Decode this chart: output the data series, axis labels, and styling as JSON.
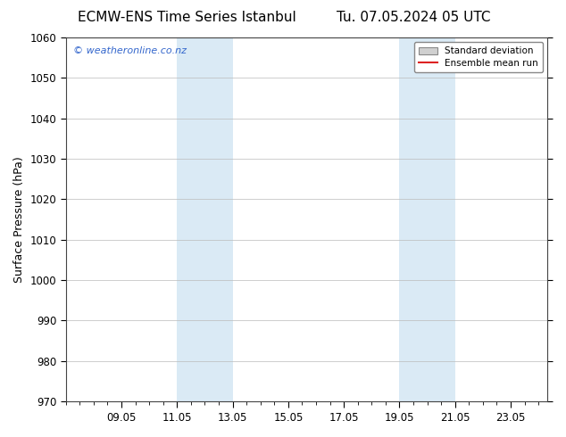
{
  "title_left": "ECMW-ENS Time Series Istanbul",
  "title_right": "Tu. 07.05.2024 05 UTC",
  "ylabel": "Surface Pressure (hPa)",
  "ylim": [
    970,
    1060
  ],
  "yticks": [
    970,
    980,
    990,
    1000,
    1010,
    1020,
    1030,
    1040,
    1050,
    1060
  ],
  "xtick_labels": [
    "09.05",
    "11.05",
    "13.05",
    "15.05",
    "17.05",
    "19.05",
    "21.05",
    "23.05"
  ],
  "xtick_positions": [
    2,
    4,
    6,
    8,
    10,
    12,
    14,
    16
  ],
  "xlim": [
    0,
    17.33
  ],
  "shade_regions": [
    {
      "x_start": 4,
      "x_end": 6
    },
    {
      "x_start": 12,
      "x_end": 14
    }
  ],
  "shade_color": "#daeaf5",
  "grid_color": "#bbbbbb",
  "watermark_text": "© weatheronline.co.nz",
  "watermark_color": "#3366cc",
  "legend_std_label": "Standard deviation",
  "legend_mean_label": "Ensemble mean run",
  "legend_std_facecolor": "#d0d0d0",
  "legend_std_edgecolor": "#888888",
  "legend_mean_color": "#dd2222",
  "bg_color": "#ffffff",
  "title_fontsize": 11,
  "tick_fontsize": 8.5,
  "ylabel_fontsize": 9,
  "watermark_fontsize": 8
}
